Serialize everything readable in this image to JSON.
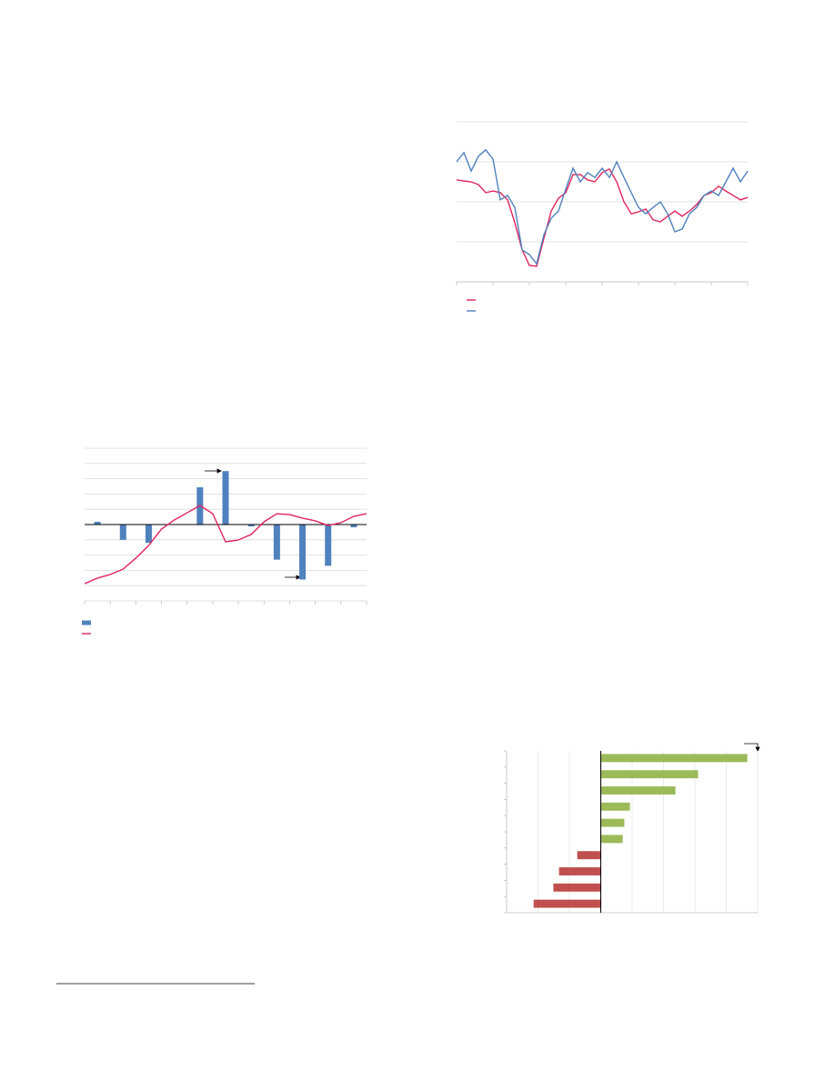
{
  "chart_data": [
    {
      "type": "line",
      "x": [
        0,
        1,
        2,
        3,
        4,
        5,
        6,
        7,
        8,
        9,
        10,
        11,
        12,
        13,
        14,
        15,
        16,
        17,
        18,
        19,
        20,
        21,
        22,
        23,
        24,
        25,
        26,
        27,
        28,
        29,
        30,
        31,
        32,
        33,
        34,
        35,
        36,
        37,
        38,
        39,
        40
      ],
      "xlim": [
        0,
        40
      ],
      "xticks": [
        0,
        5,
        10,
        15,
        20,
        25,
        30,
        35,
        40
      ],
      "ylim": [
        0,
        4
      ],
      "yticks": [
        0,
        1,
        2,
        3,
        4
      ],
      "grid": true,
      "series": [
        {
          "color": "#e0245e",
          "values": [
            2.55,
            2.52,
            2.5,
            2.43,
            2.23,
            2.27,
            2.23,
            2.05,
            1.48,
            0.8,
            0.41,
            0.39,
            1.09,
            1.77,
            2.09,
            2.23,
            2.68,
            2.68,
            2.55,
            2.5,
            2.73,
            2.82,
            2.5,
            2,
            1.7,
            1.75,
            1.82,
            1.55,
            1.5,
            1.64,
            1.77,
            1.64,
            1.77,
            1.93,
            2.16,
            2.23,
            2.39,
            2.27,
            2.16,
            2.05,
            2.11
          ]
        },
        {
          "color": "#4f81bd",
          "values": [
            3,
            3.23,
            2.77,
            3.14,
            3.3,
            3.07,
            2.05,
            2.16,
            1.86,
            0.8,
            0.68,
            0.45,
            1.18,
            1.59,
            1.77,
            2.32,
            2.84,
            2.5,
            2.73,
            2.61,
            2.84,
            2.61,
            3,
            2.61,
            2.23,
            1.86,
            1.7,
            1.86,
            2,
            1.7,
            1.25,
            1.32,
            1.7,
            1.86,
            2.16,
            2.27,
            2.16,
            2.5,
            2.84,
            2.5,
            2.77
          ]
        }
      ]
    },
    {
      "type": "combo",
      "xlim": [
        0,
        11
      ],
      "xticks": [
        0,
        1,
        2,
        3,
        4,
        5,
        6,
        7,
        8,
        9,
        10,
        11
      ],
      "ylim": [
        -5,
        5
      ],
      "yticks": [
        -5,
        -4,
        -3,
        -2,
        -1,
        0,
        1,
        2,
        3,
        4,
        5
      ],
      "grid": true,
      "series": [
        {
          "kind": "bar",
          "color": "#4f81bd",
          "x": [
            0.5,
            1.5,
            2.5,
            3.5,
            4.5,
            5.5,
            6.5,
            7.5,
            8.5,
            9.5,
            10.5
          ],
          "values": [
            0.18,
            -1.0,
            -1.2,
            0,
            2.44,
            3.5,
            -0.12,
            -2.3,
            -3.6,
            -2.7,
            -0.18
          ]
        },
        {
          "kind": "line",
          "color": "#e0245e",
          "x": [
            0,
            0.5,
            1,
            1.5,
            2,
            2.5,
            3,
            3.5,
            4,
            4.5,
            5,
            5.5,
            6,
            6.5,
            7,
            7.5,
            8,
            8.5,
            9,
            9.5,
            10,
            10.5,
            11
          ],
          "values": [
            -3.87,
            -3.51,
            -3.27,
            -2.92,
            -2.2,
            -1.37,
            -0.3,
            0.3,
            0.77,
            1.25,
            0.71,
            -1.13,
            -1.01,
            -0.65,
            0.18,
            0.71,
            0.65,
            0.42,
            0.24,
            -0.06,
            0.12,
            0.54,
            0.71
          ]
        }
      ]
    },
    {
      "type": "barh",
      "categories": [
        null,
        null,
        null,
        null,
        null,
        null,
        null,
        null,
        null,
        null
      ],
      "values": [
        4.67,
        3.1,
        2.38,
        0.93,
        0.75,
        0.7,
        -0.75,
        -1.33,
        -1.51,
        -2.14
      ],
      "colors": [
        "#9bbb59",
        "#9bbb59",
        "#9bbb59",
        "#9bbb59",
        "#9bbb59",
        "#9bbb59",
        "#c0504d",
        "#c0504d",
        "#c0504d",
        "#c0504d"
      ],
      "xlim": [
        -3,
        5
      ],
      "xticks": [
        -3,
        -2,
        -1,
        0,
        1,
        2,
        3,
        4,
        5
      ],
      "grid": true
    }
  ]
}
